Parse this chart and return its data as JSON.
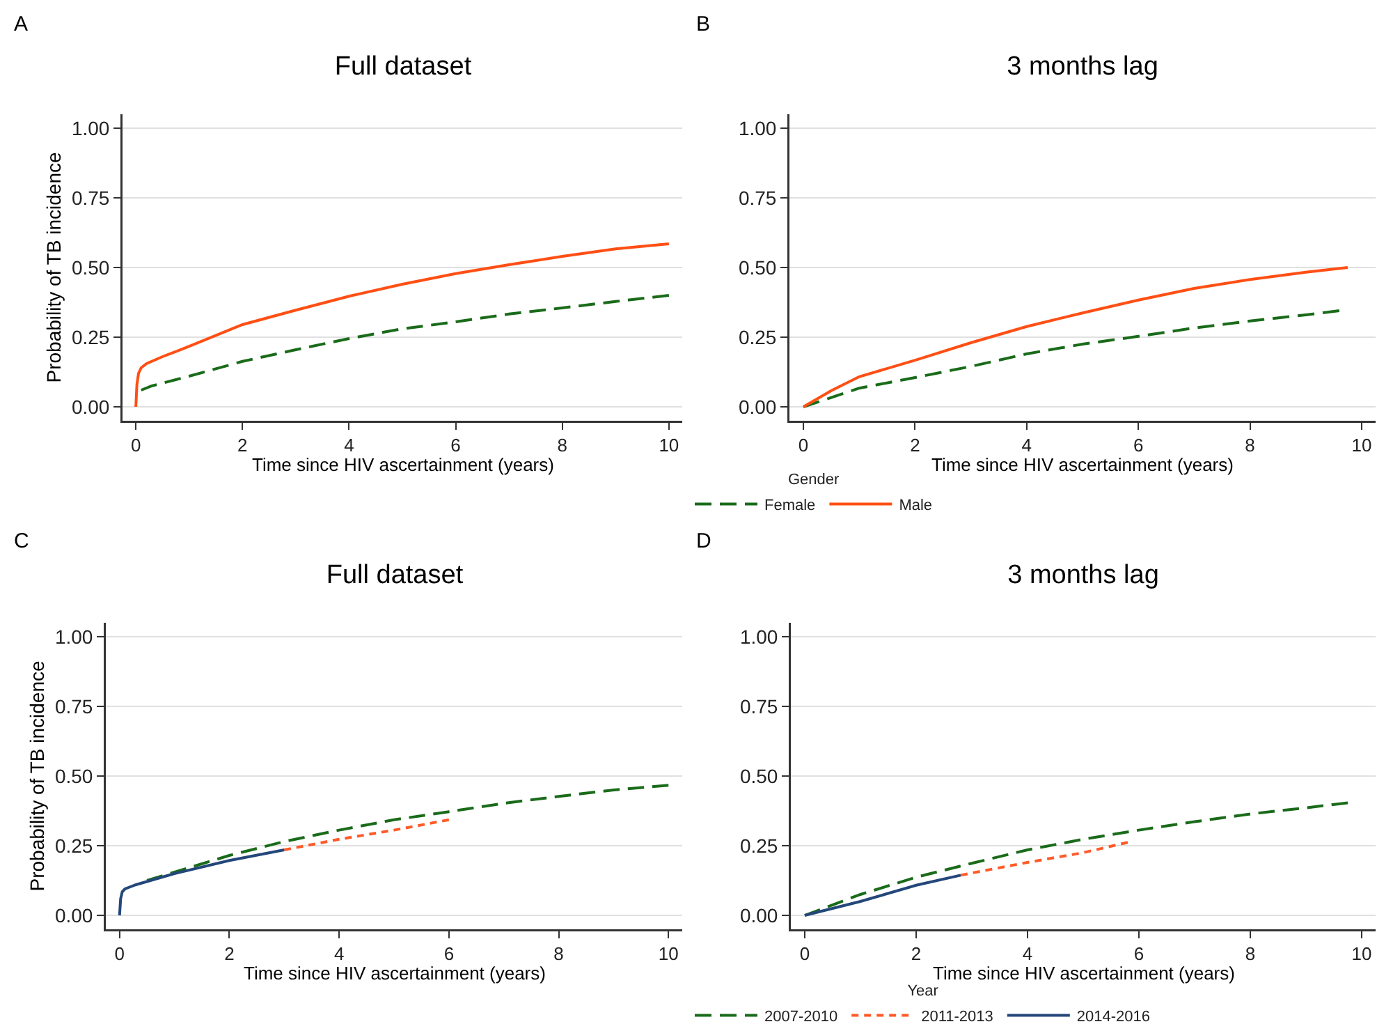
{
  "chart_data": [
    {
      "type": "line",
      "title": "Full dataset",
      "xlabel": "Time since HIV ascertainment (years)",
      "ylabel": "Probability of TB incidence",
      "annotations": [
        "A"
      ],
      "xlim": [
        -0.25,
        10.25
      ],
      "ylim": [
        -0.05,
        1.05
      ],
      "xticks": [
        0,
        2,
        4,
        6,
        8,
        10
      ],
      "yticks": [
        {
          "value": 0,
          "label": "0.00"
        },
        {
          "value": 0.25,
          "label": "0.25"
        },
        {
          "value": 0.5,
          "label": "0.50"
        },
        {
          "value": 0.75,
          "label": "0.75"
        },
        {
          "value": 1,
          "label": "1.00"
        }
      ],
      "grid": "y",
      "marker": "none",
      "series": [
        {
          "color": "#1a6b1a",
          "line_style": "dashed",
          "x": [
            0.1,
            0.3,
            1,
            2,
            3,
            4,
            5,
            6,
            7,
            8,
            9,
            10
          ],
          "values": [
            0.06,
            0.075,
            0.11,
            0.163,
            0.205,
            0.245,
            0.28,
            0.305,
            0.333,
            0.355,
            0.378,
            0.4
          ]
        },
        {
          "color": "#ff4f14",
          "line_style": "solid",
          "x": [
            0,
            0.02,
            0.05,
            0.1,
            0.2,
            0.5,
            1,
            2,
            3,
            4,
            5,
            6,
            7,
            8,
            9,
            10
          ],
          "values": [
            0,
            0.08,
            0.12,
            0.14,
            0.155,
            0.18,
            0.217,
            0.295,
            0.347,
            0.397,
            0.44,
            0.478,
            0.51,
            0.54,
            0.567,
            0.585
          ]
        }
      ]
    },
    {
      "type": "line",
      "title": "3 months lag",
      "xlabel": "Time since HIV ascertainment (years)",
      "legend_title": "Gender",
      "annotations": [
        "B"
      ],
      "xlim": [
        -0.25,
        10.25
      ],
      "ylim": [
        -0.05,
        1.05
      ],
      "xticks": [
        0,
        2,
        4,
        6,
        8,
        10
      ],
      "yticks": [
        {
          "value": 0,
          "label": "0.00"
        },
        {
          "value": 0.25,
          "label": "0.25"
        },
        {
          "value": 0.5,
          "label": "0.50"
        },
        {
          "value": 0.75,
          "label": "0.75"
        },
        {
          "value": 1,
          "label": "1.00"
        }
      ],
      "grid": "y",
      "legend": "bottom",
      "marker": "none",
      "series": [
        {
          "name": "Female",
          "color": "#1a6b1a",
          "line_style": "dashed",
          "x": [
            0,
            1,
            2,
            3,
            4,
            5,
            6,
            7,
            8,
            9,
            9.6
          ],
          "values": [
            0,
            0.067,
            0.105,
            0.145,
            0.19,
            0.225,
            0.253,
            0.283,
            0.308,
            0.33,
            0.345
          ]
        },
        {
          "name": "Male",
          "color": "#ff4f14",
          "line_style": "solid",
          "x": [
            0,
            0.5,
            1,
            2,
            3,
            4,
            5,
            6,
            7,
            8,
            9,
            9.75
          ],
          "values": [
            0,
            0.058,
            0.108,
            0.167,
            0.23,
            0.288,
            0.337,
            0.383,
            0.425,
            0.457,
            0.483,
            0.5
          ]
        }
      ]
    },
    {
      "type": "line",
      "title": "Full dataset",
      "xlabel": "Time since HIV ascertainment (years)",
      "ylabel": "Probability of TB incidence",
      "annotations": [
        "C"
      ],
      "xlim": [
        -0.25,
        10.25
      ],
      "ylim": [
        -0.05,
        1.05
      ],
      "xticks": [
        0,
        2,
        4,
        6,
        8,
        10
      ],
      "yticks": [
        {
          "value": 0,
          "label": "0.00"
        },
        {
          "value": 0.25,
          "label": "0.25"
        },
        {
          "value": 0.5,
          "label": "0.50"
        },
        {
          "value": 0.75,
          "label": "0.75"
        },
        {
          "value": 1,
          "label": "1.00"
        }
      ],
      "grid": "y",
      "marker": "none",
      "series": [
        {
          "color": "#1a6b1a",
          "line_style": "dashed",
          "x": [
            0.5,
            1,
            2,
            3,
            4,
            5,
            6,
            7,
            8,
            9,
            10
          ],
          "values": [
            0.125,
            0.155,
            0.215,
            0.265,
            0.306,
            0.343,
            0.372,
            0.402,
            0.427,
            0.45,
            0.467
          ]
        },
        {
          "color": "#ff5a28",
          "line_style": "dotted",
          "x": [
            3,
            4,
            5,
            6
          ],
          "values": [
            0.235,
            0.273,
            0.306,
            0.343
          ]
        },
        {
          "color": "#24477a",
          "line_style": "solid",
          "x": [
            0,
            0.02,
            0.05,
            0.1,
            0.3,
            1,
            2,
            3
          ],
          "values": [
            0,
            0.06,
            0.085,
            0.095,
            0.11,
            0.15,
            0.197,
            0.235
          ]
        }
      ]
    },
    {
      "type": "line",
      "title": "3 months lag",
      "xlabel": "Time since HIV ascertainment (years)",
      "legend_title": "Year",
      "annotations": [
        "D"
      ],
      "xlim": [
        -0.25,
        10.25
      ],
      "ylim": [
        -0.05,
        1.05
      ],
      "xticks": [
        0,
        2,
        4,
        6,
        8,
        10
      ],
      "yticks": [
        {
          "value": 0,
          "label": "0.00"
        },
        {
          "value": 0.25,
          "label": "0.25"
        },
        {
          "value": 0.5,
          "label": "0.50"
        },
        {
          "value": 0.75,
          "label": "0.75"
        },
        {
          "value": 1,
          "label": "1.00"
        }
      ],
      "grid": "y",
      "legend": "bottom",
      "marker": "none",
      "series": [
        {
          "name": "2007-2010",
          "color": "#1a6b1a",
          "line_style": "dashed",
          "x": [
            0,
            1,
            2,
            3,
            4,
            5,
            6,
            7,
            8,
            9,
            9.75
          ],
          "values": [
            0,
            0.075,
            0.137,
            0.187,
            0.235,
            0.273,
            0.306,
            0.336,
            0.364,
            0.386,
            0.404
          ]
        },
        {
          "name": "2011-2013",
          "color": "#ff5a28",
          "line_style": "dotted",
          "x": [
            2.8,
            3,
            4,
            5,
            5.8
          ],
          "values": [
            0.144,
            0.152,
            0.19,
            0.225,
            0.262
          ]
        },
        {
          "name": "2014-2016",
          "color": "#24477a",
          "line_style": "solid",
          "x": [
            0,
            1,
            2,
            2.8
          ],
          "values": [
            0,
            0.05,
            0.108,
            0.144
          ]
        }
      ]
    }
  ]
}
